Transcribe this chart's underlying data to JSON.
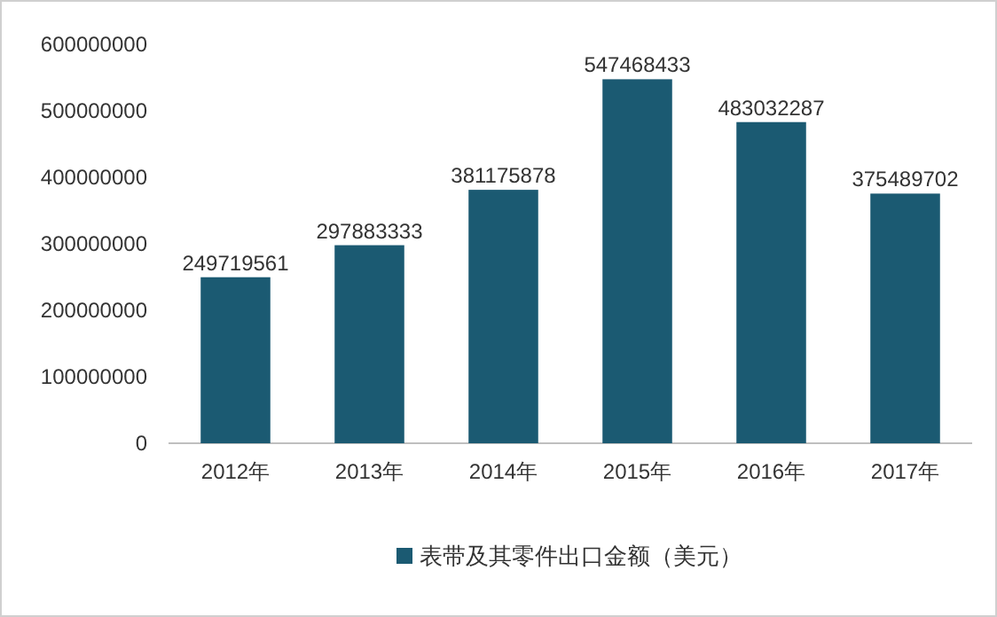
{
  "chart_data": {
    "type": "bar",
    "categories": [
      "2012年",
      "2013年",
      "2014年",
      "2015年",
      "2016年",
      "2017年"
    ],
    "series": [
      {
        "name": "表带及其零件出口金额（美元）",
        "color": "#1b5a72",
        "values": [
          249719561,
          297883333,
          381175878,
          547468433,
          483032287,
          375489702
        ]
      }
    ],
    "ylim": [
      0,
      600000000
    ],
    "yticks": [
      0,
      100000000,
      200000000,
      300000000,
      400000000,
      500000000,
      600000000
    ],
    "data_labels": true,
    "legend": "bottom"
  }
}
